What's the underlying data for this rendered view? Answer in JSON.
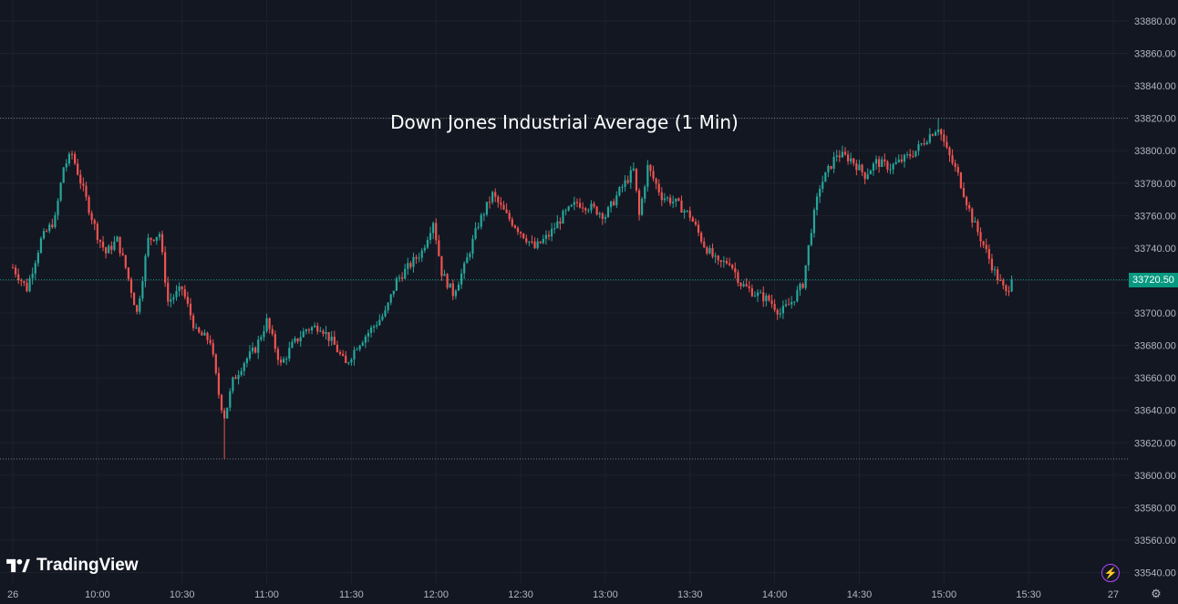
{
  "title": "Down Jones Industrial Average (1 Min)",
  "brand": {
    "name": "TradingView"
  },
  "colors": {
    "background": "#131722",
    "up": "#26a69a",
    "down": "#ef5350",
    "grid": "#1e222d",
    "axis_text": "#b2b5be",
    "price_badge": "#089981"
  },
  "current_price_label": "33720.50",
  "icons": {
    "flash": "lightning-icon",
    "settings": "gear-icon"
  },
  "chart_data": {
    "type": "candlestick",
    "title": "Down Jones Industrial Average (1 Min)",
    "ylim": [
      33530,
      33890
    ],
    "y_ticks": [
      "33880.00",
      "33860.00",
      "33840.00",
      "33820.00",
      "33800.00",
      "33780.00",
      "33760.00",
      "33740.00",
      "33720.00",
      "33700.00",
      "33680.00",
      "33660.00",
      "33640.00",
      "33620.00",
      "33600.00",
      "33580.00",
      "33560.00",
      "33540.00"
    ],
    "y_tick_values": [
      33880,
      33860,
      33840,
      33820,
      33800,
      33780,
      33760,
      33740,
      33720,
      33700,
      33680,
      33660,
      33640,
      33620,
      33600,
      33580,
      33560,
      33540
    ],
    "x_ticks": [
      "26",
      "10:00",
      "10:30",
      "11:00",
      "11:30",
      "12:00",
      "12:30",
      "13:00",
      "13:30",
      "14:00",
      "14:30",
      "15:00",
      "15:30",
      "27"
    ],
    "x_tick_minutes": [
      0,
      30,
      60,
      90,
      120,
      150,
      180,
      210,
      240,
      270,
      300,
      330,
      360,
      390
    ],
    "x_range_minutes": [
      0,
      390
    ],
    "current_price": 33720.5,
    "reference_lines": [
      33820,
      33610
    ],
    "close_path": [
      [
        0,
        33728
      ],
      [
        5,
        33715
      ],
      [
        10,
        33745
      ],
      [
        15,
        33758
      ],
      [
        18,
        33790
      ],
      [
        21,
        33798
      ],
      [
        26,
        33770
      ],
      [
        30,
        33748
      ],
      [
        33,
        33737
      ],
      [
        37,
        33745
      ],
      [
        40,
        33728
      ],
      [
        44,
        33700
      ],
      [
        48,
        33745
      ],
      [
        52,
        33749
      ],
      [
        55,
        33707
      ],
      [
        60,
        33715
      ],
      [
        65,
        33688
      ],
      [
        70,
        33683
      ],
      [
        73,
        33650
      ],
      [
        75,
        33635
      ],
      [
        78,
        33658
      ],
      [
        82,
        33670
      ],
      [
        86,
        33678
      ],
      [
        90,
        33695
      ],
      [
        95,
        33668
      ],
      [
        99,
        33680
      ],
      [
        104,
        33690
      ],
      [
        109,
        33692
      ],
      [
        114,
        33680
      ],
      [
        118,
        33668
      ],
      [
        122,
        33680
      ],
      [
        127,
        33690
      ],
      [
        132,
        33700
      ],
      [
        136,
        33720
      ],
      [
        140,
        33728
      ],
      [
        145,
        33738
      ],
      [
        149,
        33757
      ],
      [
        152,
        33725
      ],
      [
        156,
        33712
      ],
      [
        160,
        33728
      ],
      [
        165,
        33755
      ],
      [
        170,
        33773
      ],
      [
        175,
        33760
      ],
      [
        180,
        33750
      ],
      [
        185,
        33740
      ],
      [
        190,
        33748
      ],
      [
        195,
        33760
      ],
      [
        200,
        33768
      ],
      [
        205,
        33765
      ],
      [
        210,
        33760
      ],
      [
        215,
        33775
      ],
      [
        220,
        33788
      ],
      [
        222,
        33760
      ],
      [
        225,
        33790
      ],
      [
        230,
        33772
      ],
      [
        235,
        33768
      ],
      [
        240,
        33760
      ],
      [
        245,
        33742
      ],
      [
        250,
        33730
      ],
      [
        254,
        33732
      ],
      [
        258,
        33718
      ],
      [
        263,
        33712
      ],
      [
        268,
        33708
      ],
      [
        272,
        33700
      ],
      [
        276,
        33707
      ],
      [
        280,
        33718
      ],
      [
        283,
        33752
      ],
      [
        286,
        33778
      ],
      [
        292,
        33798
      ],
      [
        297,
        33795
      ],
      [
        302,
        33785
      ],
      [
        306,
        33793
      ],
      [
        311,
        33790
      ],
      [
        316,
        33795
      ],
      [
        320,
        33800
      ],
      [
        325,
        33810
      ],
      [
        328,
        33815
      ],
      [
        331,
        33800
      ],
      [
        335,
        33785
      ],
      [
        340,
        33758
      ],
      [
        344,
        33742
      ],
      [
        348,
        33725
      ],
      [
        352,
        33712
      ],
      [
        354,
        33720.5
      ]
    ]
  }
}
